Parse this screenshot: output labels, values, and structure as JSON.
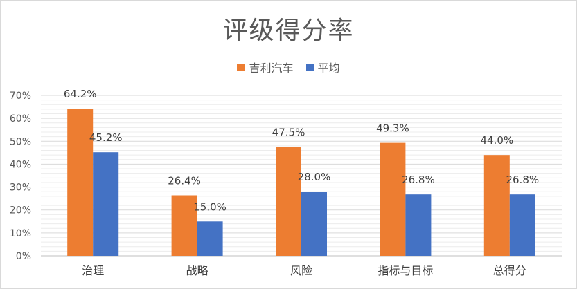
{
  "chart_data": {
    "type": "bar",
    "title": "评级得分率",
    "categories": [
      "治理",
      "战略",
      "风险",
      "指标与目标",
      "总得分"
    ],
    "series": [
      {
        "name": "吉利汽车",
        "values": [
          64.2,
          26.4,
          47.5,
          49.3,
          44.0
        ],
        "labels": [
          "64.2%",
          "26.4%",
          "47.5%",
          "49.3%",
          "44.0%"
        ],
        "color": "#ed7d31"
      },
      {
        "name": "平均",
        "values": [
          45.2,
          15.0,
          28.0,
          26.8,
          26.8
        ],
        "labels": [
          "45.2%",
          "15.0%",
          "28.0%",
          "26.8%",
          "26.8%"
        ],
        "color": "#4472c4"
      }
    ],
    "ylim": [
      0,
      70
    ],
    "yticks": [
      "0%",
      "10%",
      "20%",
      "30%",
      "40%",
      "50%",
      "60%",
      "70%"
    ],
    "grid": true,
    "legend_position": "top-center"
  }
}
